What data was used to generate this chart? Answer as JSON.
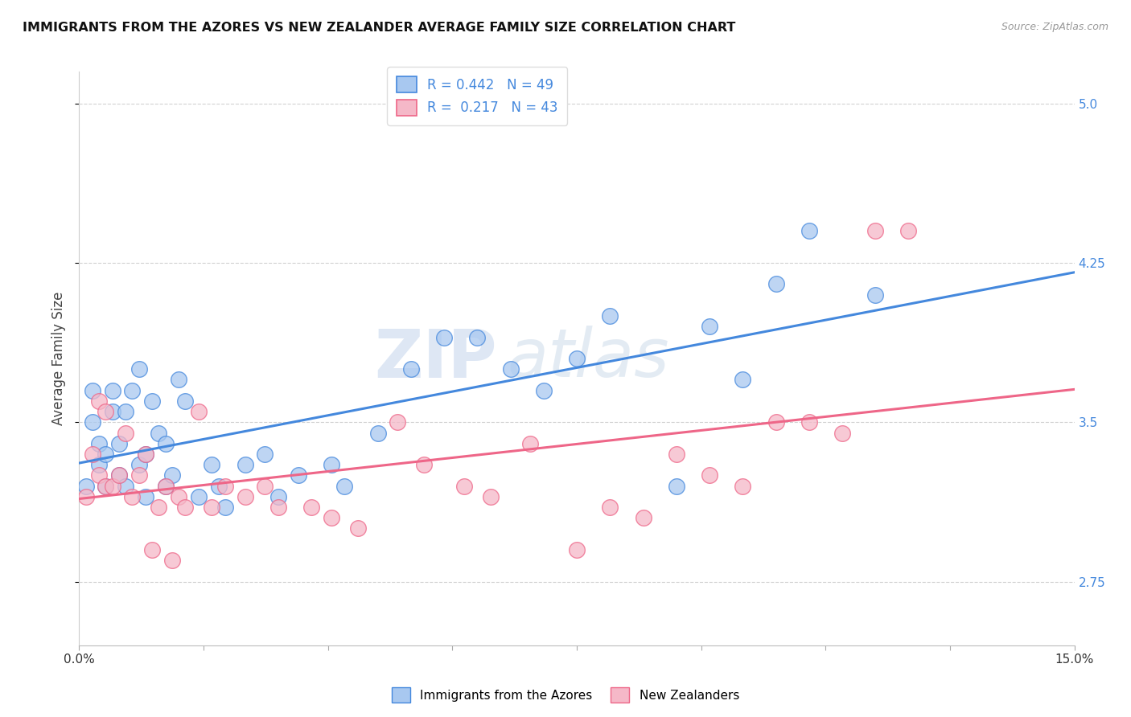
{
  "title": "IMMIGRANTS FROM THE AZORES VS NEW ZEALANDER AVERAGE FAMILY SIZE CORRELATION CHART",
  "source": "Source: ZipAtlas.com",
  "ylabel": "Average Family Size",
  "xlim": [
    0.0,
    0.15
  ],
  "ylim": [
    2.45,
    5.15
  ],
  "yticks": [
    2.75,
    3.5,
    4.25,
    5.0
  ],
  "blue_color": "#a8c8f0",
  "pink_color": "#f5b8c8",
  "blue_line_color": "#4488dd",
  "pink_line_color": "#ee6688",
  "legend_text_blue": "R = 0.442   N = 49",
  "legend_text_pink": "R =  0.217   N = 43",
  "label_blue": "Immigrants from the Azores",
  "label_pink": "New Zealanders",
  "watermark_zip": "ZIP",
  "watermark_atlas": "atlas",
  "blue_x": [
    0.001,
    0.002,
    0.002,
    0.003,
    0.003,
    0.004,
    0.004,
    0.005,
    0.005,
    0.006,
    0.006,
    0.007,
    0.007,
    0.008,
    0.009,
    0.009,
    0.01,
    0.01,
    0.011,
    0.012,
    0.013,
    0.013,
    0.014,
    0.015,
    0.016,
    0.018,
    0.02,
    0.021,
    0.022,
    0.025,
    0.028,
    0.03,
    0.033,
    0.038,
    0.04,
    0.045,
    0.05,
    0.055,
    0.06,
    0.065,
    0.07,
    0.075,
    0.08,
    0.09,
    0.095,
    0.1,
    0.105,
    0.11,
    0.12
  ],
  "blue_y": [
    3.2,
    3.5,
    3.65,
    3.3,
    3.4,
    3.2,
    3.35,
    3.55,
    3.65,
    3.25,
    3.4,
    3.2,
    3.55,
    3.65,
    3.75,
    3.3,
    3.15,
    3.35,
    3.6,
    3.45,
    3.2,
    3.4,
    3.25,
    3.7,
    3.6,
    3.15,
    3.3,
    3.2,
    3.1,
    3.3,
    3.35,
    3.15,
    3.25,
    3.3,
    3.2,
    3.45,
    3.75,
    3.9,
    3.9,
    3.75,
    3.65,
    3.8,
    4.0,
    3.2,
    3.95,
    3.7,
    4.15,
    4.4,
    4.1
  ],
  "pink_x": [
    0.001,
    0.002,
    0.003,
    0.003,
    0.004,
    0.004,
    0.005,
    0.006,
    0.007,
    0.008,
    0.009,
    0.01,
    0.011,
    0.012,
    0.013,
    0.014,
    0.015,
    0.016,
    0.018,
    0.02,
    0.022,
    0.025,
    0.028,
    0.03,
    0.035,
    0.038,
    0.042,
    0.048,
    0.052,
    0.058,
    0.062,
    0.068,
    0.075,
    0.08,
    0.085,
    0.09,
    0.095,
    0.1,
    0.105,
    0.11,
    0.115,
    0.12,
    0.125
  ],
  "pink_y": [
    3.15,
    3.35,
    3.25,
    3.6,
    3.2,
    3.55,
    3.2,
    3.25,
    3.45,
    3.15,
    3.25,
    3.35,
    2.9,
    3.1,
    3.2,
    2.85,
    3.15,
    3.1,
    3.55,
    3.1,
    3.2,
    3.15,
    3.2,
    3.1,
    3.1,
    3.05,
    3.0,
    3.5,
    3.3,
    3.2,
    3.15,
    3.4,
    2.9,
    3.1,
    3.05,
    3.35,
    3.25,
    3.2,
    3.5,
    3.5,
    3.45,
    4.4,
    4.4
  ]
}
